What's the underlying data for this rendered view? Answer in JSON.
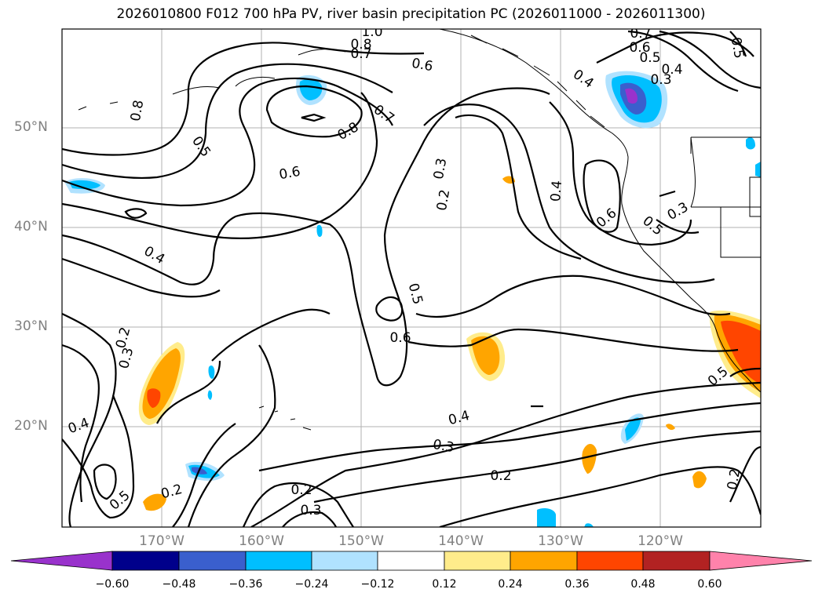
{
  "title": "2026010800 F012 700 hPa PV, river basin precipitation PC (2026011000 - 2026011300)",
  "lat_labels": [
    "50°N",
    "40°N",
    "30°N",
    "20°N"
  ],
  "lon_labels": [
    "170°W",
    "160°W",
    "150°W",
    "140°W",
    "130°W",
    "120°W"
  ],
  "contour_labels": [
    "1.0",
    "0.8",
    "0.7",
    "0.6",
    "0.7",
    "0.6",
    "0.5",
    "0.4",
    "0.3",
    "0.4",
    "0.5",
    "0.8",
    "0.8",
    "0.7",
    "0.5",
    "0.6",
    "0.3",
    "0.2",
    "0.4",
    "0.6",
    "0.5",
    "0.3",
    "0.4",
    "0.5",
    "0.6",
    "0.2",
    "0.3",
    "0.4",
    "0.4",
    "0.3",
    "0.2",
    "0.5",
    "0.5",
    "0.2",
    "0.2",
    "0.3",
    "0.2"
  ],
  "colorbar": {
    "ticks": [
      "−0.60",
      "−0.48",
      "−0.36",
      "−0.24",
      "−0.12",
      "0.12",
      "0.24",
      "0.36",
      "0.48",
      "0.60"
    ],
    "colors": [
      "#9932cc",
      "#00008b",
      "#3a5fcd",
      "#00bfff",
      "#b0e2ff",
      "#ffffff",
      "#ffec8b",
      "#ffa500",
      "#ff4500",
      "#b22222",
      "#ff82ab"
    ]
  },
  "fill_colors": {
    "light_blue": "#b0e2ff",
    "sky_blue": "#00bfff",
    "royal_blue": "#3a5fcd",
    "purple": "#9932cc",
    "light_yellow": "#ffec8b",
    "orange": "#ffa500",
    "orange_red": "#ff4500"
  }
}
